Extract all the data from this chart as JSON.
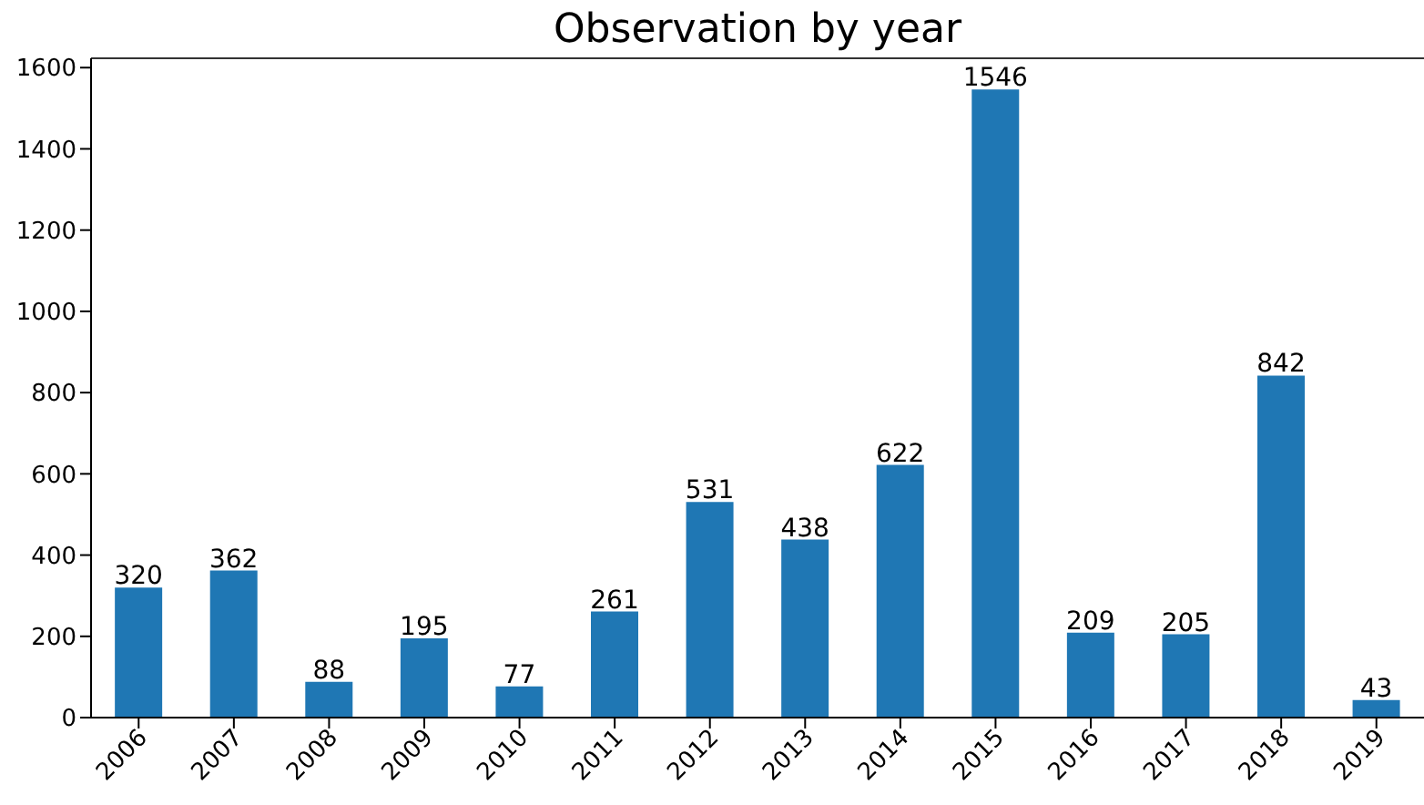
{
  "chart_data": {
    "type": "bar",
    "title": "Observation by year",
    "categories": [
      "2006",
      "2007",
      "2008",
      "2009",
      "2010",
      "2011",
      "2012",
      "2013",
      "2014",
      "2015",
      "2016",
      "2017",
      "2018",
      "2019"
    ],
    "values": [
      320,
      362,
      88,
      195,
      77,
      261,
      531,
      438,
      622,
      1546,
      209,
      205,
      842,
      43
    ],
    "color": "#1f77b4",
    "ylim": [
      0,
      1623
    ],
    "yticks": [
      0,
      200,
      400,
      600,
      800,
      1000,
      1200,
      1400,
      1600
    ],
    "grid": false,
    "data_labels": true
  }
}
